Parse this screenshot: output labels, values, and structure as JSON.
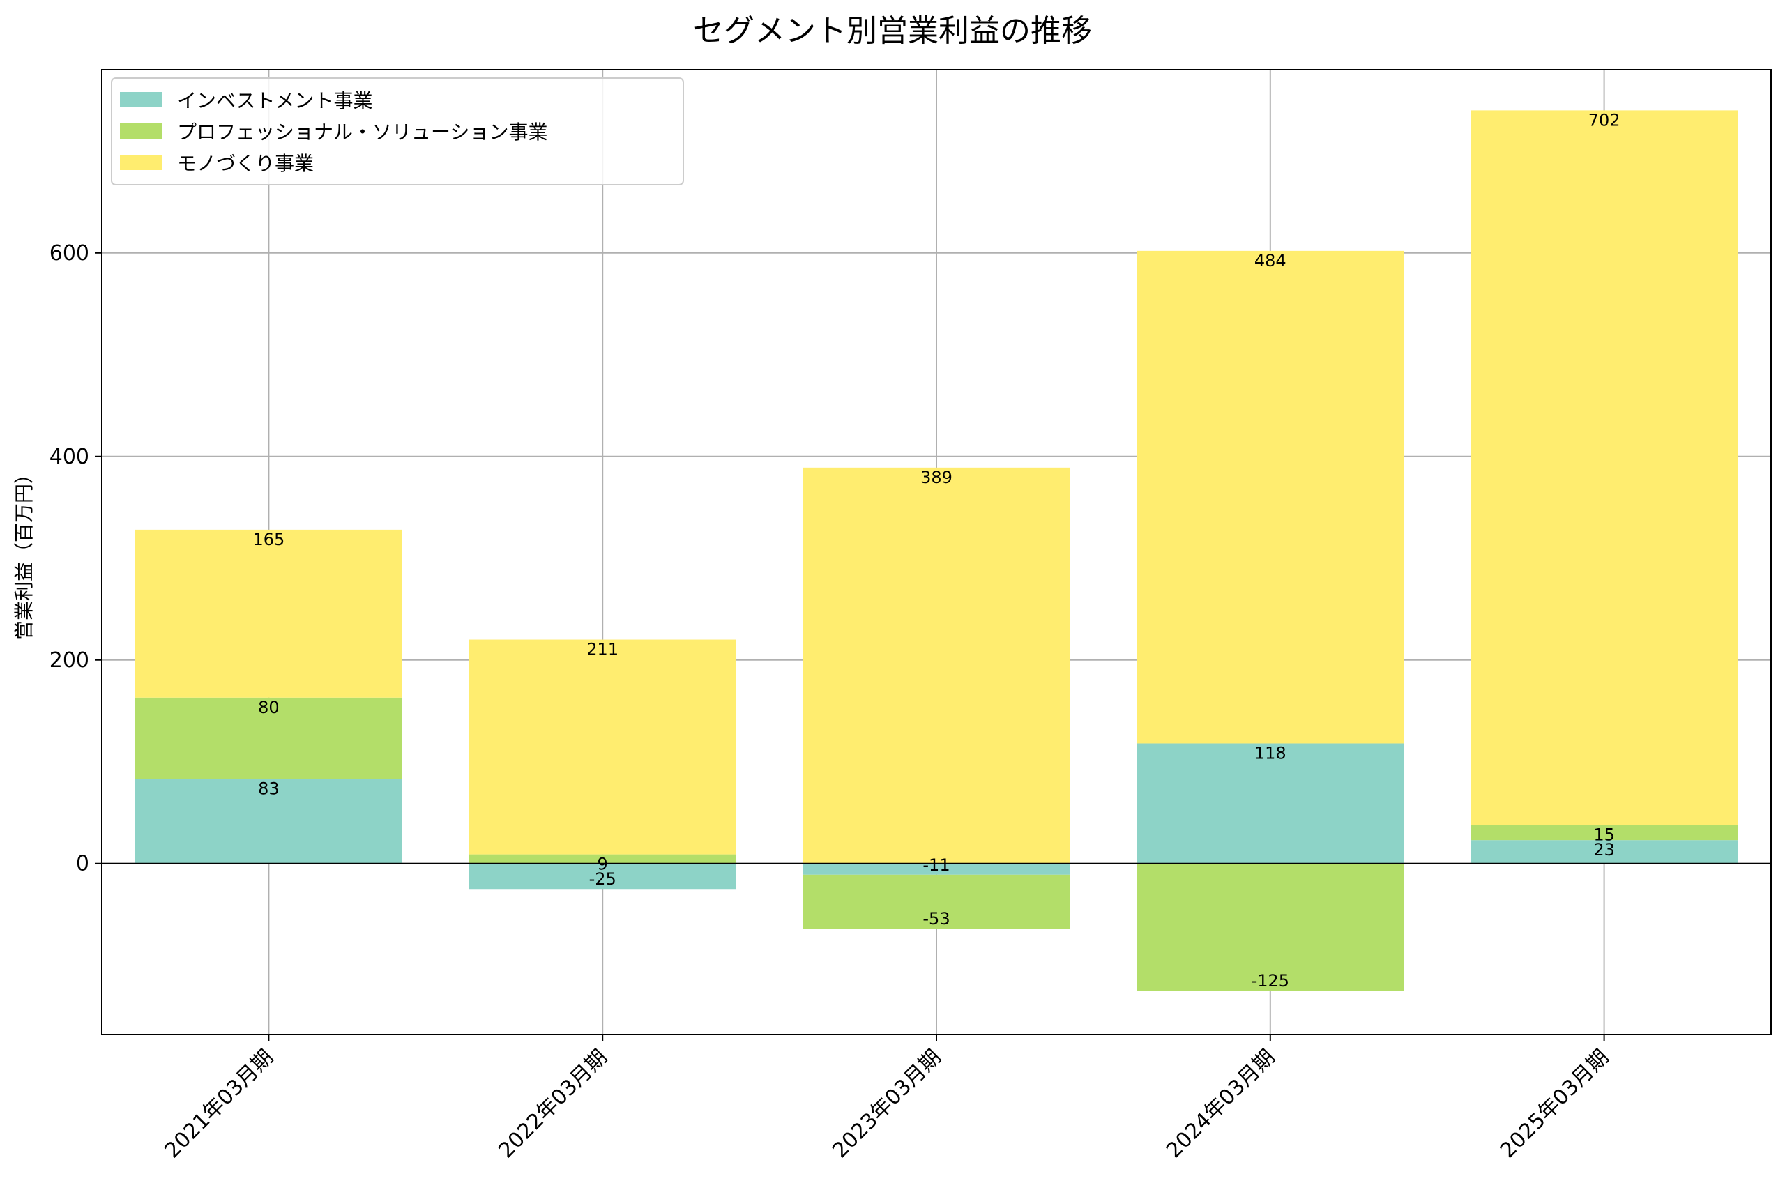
{
  "chart_data": {
    "type": "bar",
    "stacked": true,
    "title": "セグメント別営業利益の推移",
    "xlabel": "",
    "ylabel": "営業利益（百万円）",
    "categories": [
      "2021年03月期",
      "2022年03月期",
      "2023年03月期",
      "2024年03月期",
      "2025年03月期"
    ],
    "series": [
      {
        "name": "インベストメント事業",
        "color": "#8dd3c7",
        "values": [
          83,
          -25,
          -11,
          118,
          23
        ]
      },
      {
        "name": "プロフェッショナル・ソリューション事業",
        "color": "#b3de69",
        "values": [
          80,
          9,
          -53,
          -125,
          15
        ]
      },
      {
        "name": "モノづくり事業",
        "color": "#ffed6f",
        "values": [
          165,
          211,
          389,
          484,
          702
        ]
      }
    ],
    "ylim": [
      -168,
      780
    ],
    "yticks": [
      0,
      200,
      400,
      600
    ],
    "grid": true,
    "legend": "top-left"
  }
}
